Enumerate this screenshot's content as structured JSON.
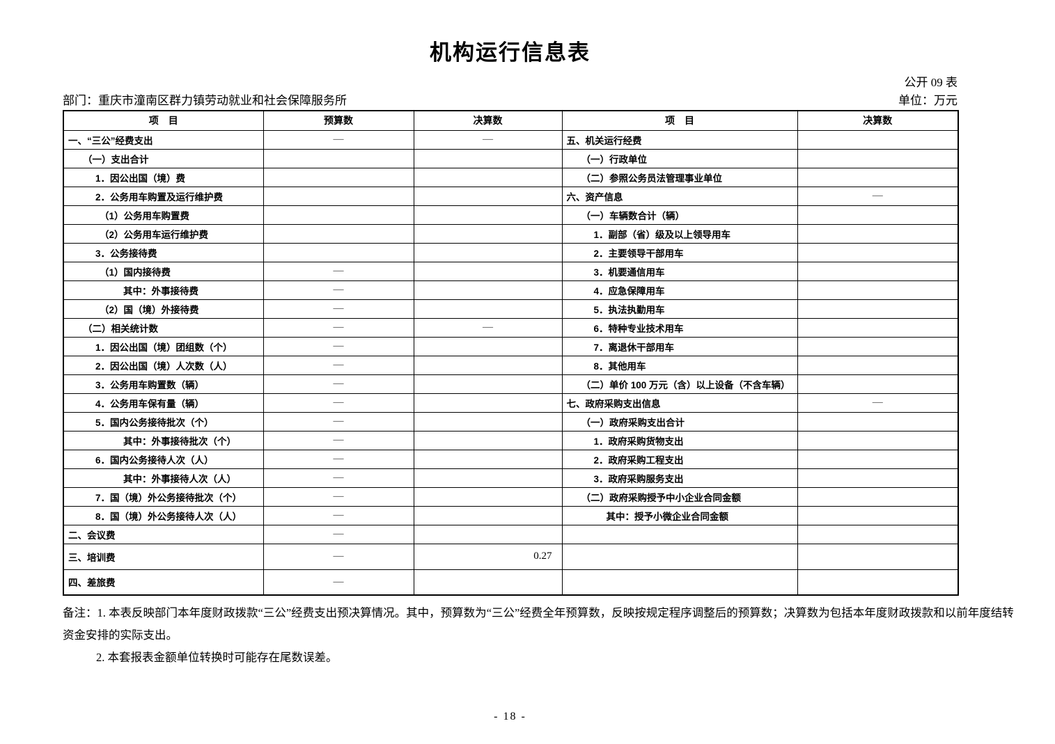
{
  "page": {
    "title": "机构运行信息表",
    "form_label": "公开 09 表",
    "department_label": "部门：重庆市潼南区群力镇劳动就业和社会保障服务所",
    "unit_label": "单位：万元",
    "page_number": "- 18 -"
  },
  "table": {
    "left_headers": {
      "item": "项　目",
      "budget": "预算数",
      "final": "决算数"
    },
    "right_headers": {
      "item": "项　目",
      "final": "决算数"
    },
    "rows": [
      {
        "ll": "一、“三公”经费支出",
        "li": 0,
        "lb": "—",
        "lf": "—",
        "rl": "五、机关运行经费",
        "ri": 0,
        "rf": "",
        "tall": false
      },
      {
        "ll": "（一）支出合计",
        "li": 1,
        "lb": "",
        "lf": "",
        "rl": "（一）行政单位",
        "ri": 1,
        "rf": "",
        "tall": false
      },
      {
        "ll": "1．因公出国（境）费",
        "li": 2,
        "lb": "",
        "lf": "",
        "rl": "（二）参照公务员法管理事业单位",
        "ri": 1,
        "rf": "",
        "tall": false
      },
      {
        "ll": "2．公务用车购置及运行维护费",
        "li": 2,
        "lb": "",
        "lf": "",
        "rl": "六、资产信息",
        "ri": 0,
        "rf": "—",
        "tall": false
      },
      {
        "ll": "（1）公务用车购置费",
        "li": 3,
        "lb": "",
        "lf": "",
        "rl": "（一）车辆数合计（辆）",
        "ri": 1,
        "rf": "",
        "tall": false
      },
      {
        "ll": "（2）公务用车运行维护费",
        "li": 3,
        "lb": "",
        "lf": "",
        "rl": "1．副部（省）级及以上领导用车",
        "ri": 2,
        "rf": "",
        "tall": false
      },
      {
        "ll": "3．公务接待费",
        "li": 2,
        "lb": "",
        "lf": "",
        "rl": "2．主要领导干部用车",
        "ri": 2,
        "rf": "",
        "tall": false
      },
      {
        "ll": "（1）国内接待费",
        "li": 3,
        "lb": "—",
        "lf": "",
        "rl": "3．机要通信用车",
        "ri": 2,
        "rf": "",
        "tall": false
      },
      {
        "ll": "其中：外事接待费",
        "li": 5,
        "lb": "—",
        "lf": "",
        "rl": "4．应急保障用车",
        "ri": 2,
        "rf": "",
        "tall": false
      },
      {
        "ll": "（2）国（境）外接待费",
        "li": 3,
        "lb": "—",
        "lf": "",
        "rl": "5．执法执勤用车",
        "ri": 2,
        "rf": "",
        "tall": false
      },
      {
        "ll": "（二）相关统计数",
        "li": 1,
        "lb": "—",
        "lf": "—",
        "rl": "6．特种专业技术用车",
        "ri": 2,
        "rf": "",
        "tall": false
      },
      {
        "ll": "1．因公出国（境）团组数（个）",
        "li": 2,
        "lb": "—",
        "lf": "",
        "rl": "7．离退休干部用车",
        "ri": 2,
        "rf": "",
        "tall": false
      },
      {
        "ll": "2．因公出国（境）人次数（人）",
        "li": 2,
        "lb": "—",
        "lf": "",
        "rl": "8．其他用车",
        "ri": 2,
        "rf": "",
        "tall": false
      },
      {
        "ll": "3．公务用车购置数（辆）",
        "li": 2,
        "lb": "—",
        "lf": "",
        "rl": "（二）单价 100 万元（含）以上设备（不含车辆）",
        "ri": 1,
        "rf": "",
        "tall": false
      },
      {
        "ll": "4．公务用车保有量（辆）",
        "li": 2,
        "lb": "—",
        "lf": "",
        "rl": "七、政府采购支出信息",
        "ri": 0,
        "rf": "—",
        "tall": false
      },
      {
        "ll": "5．国内公务接待批次（个）",
        "li": 2,
        "lb": "—",
        "lf": "",
        "rl": "（一）政府采购支出合计",
        "ri": 1,
        "rf": "",
        "tall": false
      },
      {
        "ll": "其中：外事接待批次（个）",
        "li": 5,
        "lb": "—",
        "lf": "",
        "rl": "1．政府采购货物支出",
        "ri": 2,
        "rf": "",
        "tall": false
      },
      {
        "ll": "6．国内公务接待人次（人）",
        "li": 2,
        "lb": "—",
        "lf": "",
        "rl": "2．政府采购工程支出",
        "ri": 2,
        "rf": "",
        "tall": false
      },
      {
        "ll": "其中：外事接待人次（人）",
        "li": 5,
        "lb": "—",
        "lf": "",
        "rl": "3．政府采购服务支出",
        "ri": 2,
        "rf": "",
        "tall": false
      },
      {
        "ll": "7．国（境）外公务接待批次（个）",
        "li": 2,
        "lb": "—",
        "lf": "",
        "rl": "（二）政府采购授予中小企业合同金额",
        "ri": 1,
        "rf": "",
        "tall": false
      },
      {
        "ll": "8．国（境）外公务接待人次（人）",
        "li": 2,
        "lb": "—",
        "lf": "",
        "rl": "其中：授予小微企业合同金额",
        "ri": 4,
        "rf": "",
        "tall": false
      },
      {
        "ll": "二、会议费",
        "li": 0,
        "lb": "—",
        "lf": "",
        "rl": "",
        "ri": 0,
        "rf": "",
        "tall": false
      },
      {
        "ll": "三、培训费",
        "li": 0,
        "lb": "—",
        "lf": "0.27",
        "rl": "",
        "ri": 0,
        "rf": "",
        "tall": true
      },
      {
        "ll": "四、差旅费",
        "li": 0,
        "lb": "—",
        "lf": "",
        "rl": "",
        "ri": 0,
        "rf": "",
        "tall": true
      }
    ]
  },
  "notes": {
    "line1": "备注：1. 本表反映部门本年度财政拨款“三公”经费支出预决算情况。其中，预算数为“三公”经费全年预算数，反映按规定程序调整后的预算数；决算数为包括本年度财政拨款和以前年度结转",
    "line2": "资金安排的实际支出。",
    "line3": "2. 本套报表金额单位转换时可能存在尾数误差。"
  }
}
